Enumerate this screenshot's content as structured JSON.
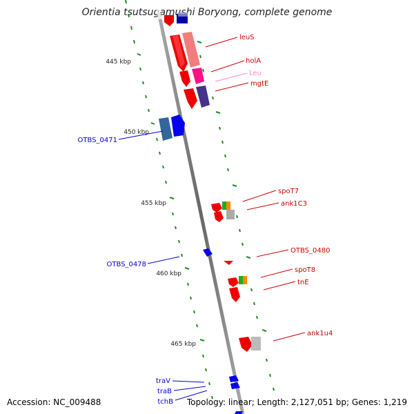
{
  "title": "Orientia tsutsugamushi Boryong, complete genome",
  "footer": {
    "accession": "Accession: NC_009488",
    "summary": "Topology: linear; Length: 2,127,051 bp; Genes: 1,219"
  },
  "ticks": [
    {
      "label": "445 kbp"
    },
    {
      "label": "450 kbp"
    },
    {
      "label": "455 kbp"
    },
    {
      "label": "460 kbp"
    },
    {
      "label": "465 kbp"
    }
  ],
  "genes": {
    "leuS": "leuS",
    "holA": "holA",
    "Leu": "Leu",
    "mgtE": "mgtE",
    "OTBS_0471": "OTBS_0471",
    "spoT7": "spoT7",
    "ank1C3": "ank1C3",
    "OTBS_0480": "OTBS_0480",
    "OTBS_0478": "OTBS_0478",
    "spoT8": "spoT8",
    "tnE": "tnE",
    "ank1u4": "ank1u4",
    "traV": "traV",
    "traB": "traB",
    "tchB": "tchB"
  },
  "colors": {
    "forward": "#cc0000",
    "reverse": "#0000cc",
    "trna": "#ff88cc",
    "axis": "#888888",
    "dots": "#228822"
  }
}
